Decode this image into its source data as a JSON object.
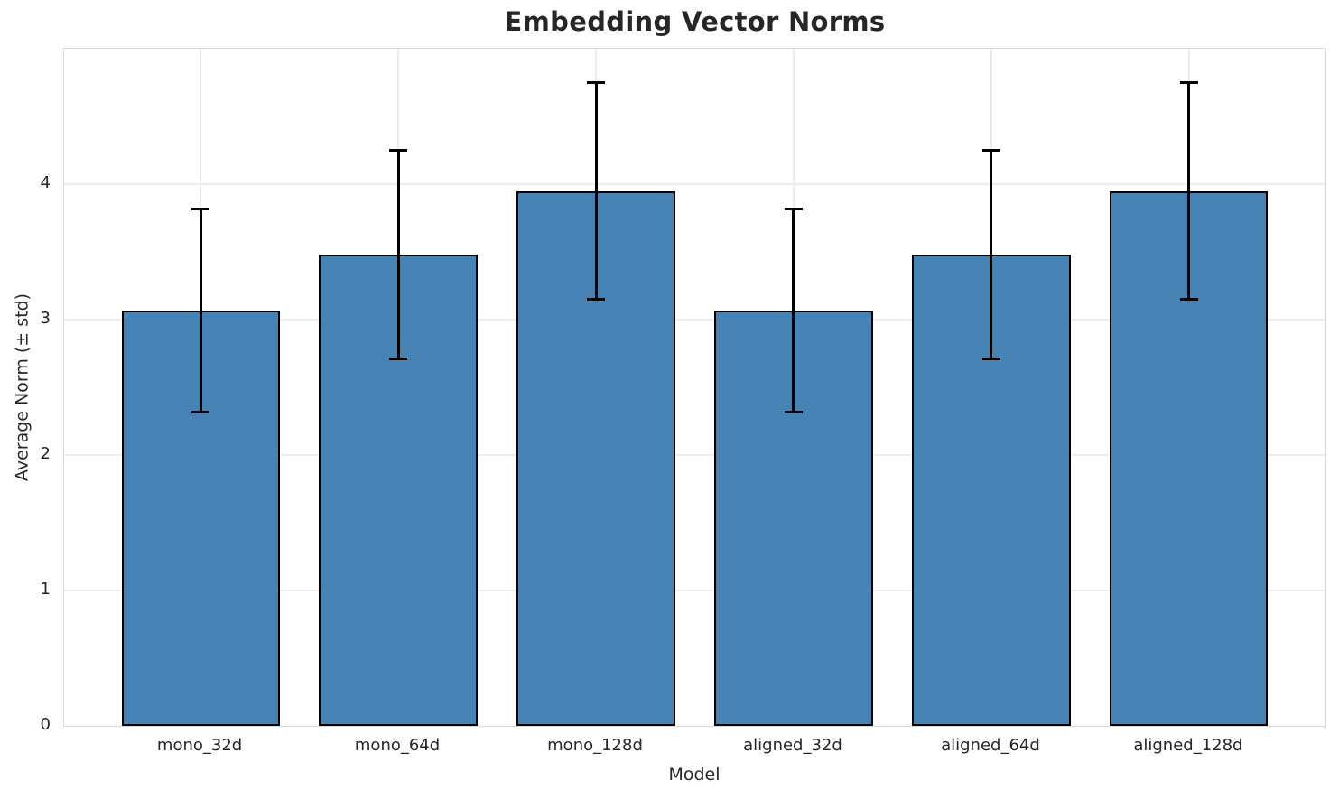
{
  "chart_data": {
    "type": "bar",
    "title": "Embedding Vector Norms",
    "xlabel": "Model",
    "ylabel": "Average Norm (± std)",
    "categories": [
      "mono_32d",
      "mono_64d",
      "mono_128d",
      "aligned_32d",
      "aligned_64d",
      "aligned_128d"
    ],
    "values": [
      3.07,
      3.48,
      3.95,
      3.07,
      3.48,
      3.95
    ],
    "errors": [
      0.75,
      0.77,
      0.8,
      0.75,
      0.77,
      0.8
    ],
    "ylim": [
      0,
      5
    ],
    "yticks": [
      0,
      1,
      2,
      3,
      4
    ],
    "grid": true,
    "legend": false,
    "bar_color": "#4682b4",
    "bar_edge_color": "#000000",
    "error_color": "#000000",
    "grid_color": "#ededed",
    "spine_color": "#d9d9d9",
    "text_color": "#262626",
    "background_color": "#ffffff"
  }
}
